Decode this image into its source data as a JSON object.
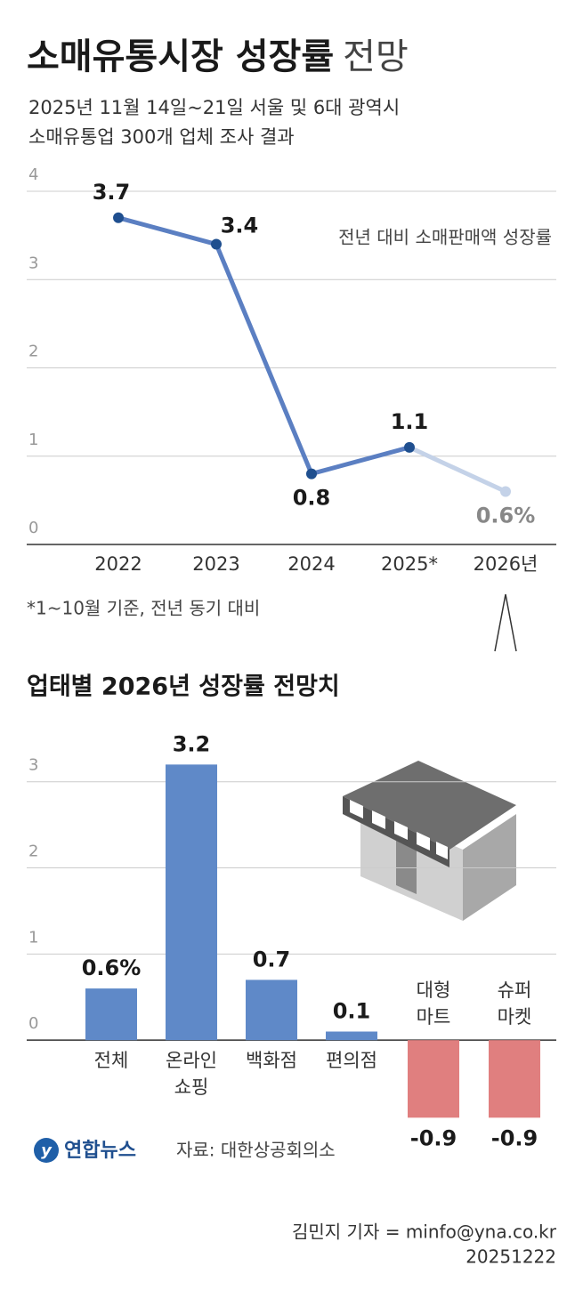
{
  "header": {
    "title": "소매유통시장 성장률",
    "title_suffix": "전망",
    "subtitle_lines": [
      "2025년 11월 14일~21일 서울 및 6대 광역시",
      "소매유통업 300개 업체 조사 결과"
    ]
  },
  "chart_data": [
    {
      "type": "line",
      "annotation": "전년 대비 소매판매액 성장률",
      "categories": [
        "2022",
        "2023",
        "2024",
        "2025*",
        "2026년"
      ],
      "series": [
        {
          "values": [
            3.7,
            3.4,
            0.8,
            1.1,
            0.6
          ],
          "value_labels": [
            "3.7",
            "3.4",
            "0.8",
            "1.1",
            "0.6%"
          ],
          "color": "#5b7fc2",
          "projection_color": "#c4d2e8"
        }
      ],
      "ylim": [
        0,
        4
      ],
      "yticks": [
        0,
        1,
        2,
        3,
        4
      ],
      "grid": true,
      "note": "*1~10월 기준, 전년 동기 대비"
    },
    {
      "type": "bar",
      "title": "업태별 2026년 성장률 전망치",
      "categories": [
        [
          "전체"
        ],
        [
          "온라인",
          "쇼핑"
        ],
        [
          "백화점"
        ],
        [
          "편의점"
        ],
        [
          "대형",
          "마트"
        ],
        [
          "슈퍼",
          "마켓"
        ]
      ],
      "values": [
        0.6,
        3.2,
        0.7,
        0.1,
        -0.9,
        -0.9
      ],
      "value_labels": [
        "0.6%",
        "3.2",
        "0.7",
        "0.1",
        "-0.9",
        "-0.9"
      ],
      "colors": [
        "#5f89c8",
        "#5f89c8",
        "#5f89c8",
        "#5f89c8",
        "#e07f7f",
        "#e07f7f"
      ],
      "ylim": [
        -1,
        3.4
      ],
      "yticks": [
        0,
        1,
        2,
        3
      ],
      "grid": true
    }
  ],
  "footer": {
    "logo": "연합뉴스",
    "source": "자료: 대한상공회의소",
    "byline": "김민지 기자 = minfo@yna.co.kr",
    "date": "20251222"
  }
}
